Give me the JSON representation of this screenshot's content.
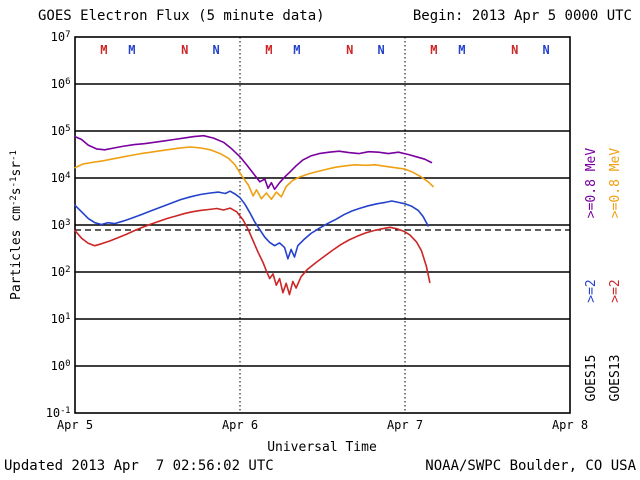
{
  "header": {
    "title": "GOES Electron Flux (5 minute data)",
    "begin": "Begin: 2013 Apr 5 0000 UTC"
  },
  "footer": {
    "updated": "Updated 2013 Apr  7 02:56:02 UTC",
    "credit": "NOAA/SWPC Boulder, CO USA"
  },
  "chart_data": {
    "type": "line",
    "title": "GOES Electron Flux (5 minute data)",
    "xlabel": "Universal Time",
    "ylabel_plain": "Particles cm-2s-1sr-1",
    "ylabel_parts": [
      {
        "text": "Particles cm"
      },
      {
        "text": "-2",
        "sup": true
      },
      {
        "text": "s"
      },
      {
        "text": "-1",
        "sup": true
      },
      {
        "text": "sr"
      },
      {
        "text": "-1",
        "sup": true
      }
    ],
    "x_start": "2013 Apr 5 0000 UTC",
    "x_end": "2013 Apr 8 0000 UTC",
    "xlim_days": [
      0,
      3
    ],
    "ylim_log10": [
      -1,
      7
    ],
    "grid": true,
    "y_base": "10",
    "y_tick_exponents": [
      "7",
      "6",
      "5",
      "4",
      "3",
      "2",
      "1",
      "0",
      "-1"
    ],
    "x_ticks": [
      {
        "day": 0,
        "label": "Apr 5"
      },
      {
        "day": 1,
        "label": "Apr 6"
      },
      {
        "day": 2,
        "label": "Apr 7"
      },
      {
        "day": 3,
        "label": "Apr 8"
      }
    ],
    "threshold_log10": 3,
    "day_gridlines": [
      1,
      2
    ],
    "colors": {
      "purple": "#7A00A0",
      "orange": "#EFA012",
      "blue": "#2442CC",
      "red": "#CC2626",
      "axis": "#000000"
    },
    "markers": [
      {
        "d": 0.175,
        "letter": "M",
        "color_key": "red"
      },
      {
        "d": 0.345,
        "letter": "M",
        "color_key": "blue"
      },
      {
        "d": 0.665,
        "letter": "N",
        "color_key": "red"
      },
      {
        "d": 0.855,
        "letter": "N",
        "color_key": "blue"
      },
      {
        "d": 1.175,
        "letter": "M",
        "color_key": "red"
      },
      {
        "d": 1.345,
        "letter": "M",
        "color_key": "blue"
      },
      {
        "d": 1.665,
        "letter": "N",
        "color_key": "red"
      },
      {
        "d": 1.855,
        "letter": "N",
        "color_key": "blue"
      },
      {
        "d": 2.175,
        "letter": "M",
        "color_key": "red"
      },
      {
        "d": 2.345,
        "letter": "M",
        "color_key": "blue"
      },
      {
        "d": 2.665,
        "letter": "N",
        "color_key": "red"
      },
      {
        "d": 2.855,
        "letter": "N",
        "color_key": "blue"
      }
    ],
    "legend": {
      "columns": [
        {
          "satellite": "GOES15",
          "labels": [
            {
              "text": ">=0.8 MeV",
              "color_key": "purple"
            },
            {
              "text": ">=2",
              "color_key": "blue"
            }
          ]
        },
        {
          "satellite": "GOES13",
          "labels": [
            {
              "text": ">=0.8 MeV",
              "color_key": "orange"
            },
            {
              "text": ">=2",
              "color_key": "red"
            }
          ]
        }
      ]
    },
    "series": [
      {
        "name": "GOES15 >=0.8 MeV",
        "key": "goes15-ge0p8mev",
        "color_key": "purple",
        "points": [
          [
            0,
            4.88
          ],
          [
            0.04,
            4.82
          ],
          [
            0.08,
            4.7
          ],
          [
            0.13,
            4.62
          ],
          [
            0.18,
            4.6
          ],
          [
            0.24,
            4.64
          ],
          [
            0.3,
            4.68
          ],
          [
            0.36,
            4.71
          ],
          [
            0.42,
            4.73
          ],
          [
            0.48,
            4.76
          ],
          [
            0.54,
            4.79
          ],
          [
            0.6,
            4.82
          ],
          [
            0.66,
            4.85
          ],
          [
            0.72,
            4.88
          ],
          [
            0.78,
            4.9
          ],
          [
            0.84,
            4.85
          ],
          [
            0.9,
            4.76
          ],
          [
            0.95,
            4.62
          ],
          [
            1,
            4.45
          ],
          [
            1.04,
            4.28
          ],
          [
            1.08,
            4.1
          ],
          [
            1.12,
            3.92
          ],
          [
            1.15,
            3.98
          ],
          [
            1.17,
            3.78
          ],
          [
            1.19,
            3.9
          ],
          [
            1.21,
            3.76
          ],
          [
            1.24,
            3.9
          ],
          [
            1.27,
            4.02
          ],
          [
            1.3,
            4.12
          ],
          [
            1.34,
            4.26
          ],
          [
            1.38,
            4.38
          ],
          [
            1.43,
            4.47
          ],
          [
            1.48,
            4.52
          ],
          [
            1.54,
            4.55
          ],
          [
            1.6,
            4.57
          ],
          [
            1.66,
            4.54
          ],
          [
            1.72,
            4.52
          ],
          [
            1.78,
            4.56
          ],
          [
            1.84,
            4.55
          ],
          [
            1.9,
            4.52
          ],
          [
            1.96,
            4.55
          ],
          [
            2.02,
            4.5
          ],
          [
            2.07,
            4.45
          ],
          [
            2.12,
            4.4
          ],
          [
            2.16,
            4.33
          ]
        ]
      },
      {
        "name": "GOES13 >=0.8 MeV",
        "key": "goes13-ge0p8mev",
        "color_key": "orange",
        "points": [
          [
            0,
            4.22
          ],
          [
            0.05,
            4.3
          ],
          [
            0.1,
            4.33
          ],
          [
            0.16,
            4.36
          ],
          [
            0.22,
            4.4
          ],
          [
            0.28,
            4.44
          ],
          [
            0.34,
            4.48
          ],
          [
            0.4,
            4.52
          ],
          [
            0.46,
            4.55
          ],
          [
            0.52,
            4.58
          ],
          [
            0.58,
            4.61
          ],
          [
            0.64,
            4.64
          ],
          [
            0.7,
            4.66
          ],
          [
            0.76,
            4.64
          ],
          [
            0.82,
            4.6
          ],
          [
            0.88,
            4.52
          ],
          [
            0.93,
            4.42
          ],
          [
            0.97,
            4.28
          ],
          [
            1.01,
            4.05
          ],
          [
            1.05,
            3.85
          ],
          [
            1.08,
            3.62
          ],
          [
            1.1,
            3.75
          ],
          [
            1.13,
            3.56
          ],
          [
            1.16,
            3.68
          ],
          [
            1.19,
            3.55
          ],
          [
            1.22,
            3.7
          ],
          [
            1.25,
            3.6
          ],
          [
            1.28,
            3.82
          ],
          [
            1.32,
            3.95
          ],
          [
            1.36,
            4.02
          ],
          [
            1.41,
            4.08
          ],
          [
            1.46,
            4.13
          ],
          [
            1.52,
            4.18
          ],
          [
            1.58,
            4.23
          ],
          [
            1.64,
            4.26
          ],
          [
            1.7,
            4.28
          ],
          [
            1.76,
            4.27
          ],
          [
            1.82,
            4.28
          ],
          [
            1.88,
            4.25
          ],
          [
            1.94,
            4.22
          ],
          [
            2,
            4.19
          ],
          [
            2.05,
            4.12
          ],
          [
            2.1,
            4.02
          ],
          [
            2.14,
            3.92
          ],
          [
            2.17,
            3.82
          ]
        ]
      },
      {
        "name": "GOES15 >=2 MeV",
        "key": "goes15-ge2mev",
        "color_key": "blue",
        "points": [
          [
            0,
            3.42
          ],
          [
            0.04,
            3.28
          ],
          [
            0.08,
            3.14
          ],
          [
            0.12,
            3.05
          ],
          [
            0.16,
            3.01
          ],
          [
            0.2,
            3.05
          ],
          [
            0.24,
            3.03
          ],
          [
            0.29,
            3.08
          ],
          [
            0.34,
            3.14
          ],
          [
            0.4,
            3.22
          ],
          [
            0.46,
            3.3
          ],
          [
            0.52,
            3.38
          ],
          [
            0.58,
            3.46
          ],
          [
            0.64,
            3.54
          ],
          [
            0.7,
            3.6
          ],
          [
            0.76,
            3.65
          ],
          [
            0.82,
            3.68
          ],
          [
            0.87,
            3.7
          ],
          [
            0.91,
            3.67
          ],
          [
            0.94,
            3.72
          ],
          [
            0.97,
            3.66
          ],
          [
            1,
            3.58
          ],
          [
            1.03,
            3.44
          ],
          [
            1.06,
            3.26
          ],
          [
            1.09,
            3.06
          ],
          [
            1.12,
            2.9
          ],
          [
            1.15,
            2.74
          ],
          [
            1.18,
            2.63
          ],
          [
            1.21,
            2.56
          ],
          [
            1.24,
            2.62
          ],
          [
            1.27,
            2.52
          ],
          [
            1.29,
            2.28
          ],
          [
            1.31,
            2.48
          ],
          [
            1.33,
            2.32
          ],
          [
            1.35,
            2.56
          ],
          [
            1.39,
            2.7
          ],
          [
            1.43,
            2.82
          ],
          [
            1.48,
            2.93
          ],
          [
            1.53,
            3.03
          ],
          [
            1.58,
            3.12
          ],
          [
            1.63,
            3.22
          ],
          [
            1.68,
            3.3
          ],
          [
            1.73,
            3.36
          ],
          [
            1.78,
            3.41
          ],
          [
            1.83,
            3.45
          ],
          [
            1.88,
            3.48
          ],
          [
            1.92,
            3.51
          ],
          [
            1.96,
            3.48
          ],
          [
            2,
            3.45
          ],
          [
            2.04,
            3.4
          ],
          [
            2.08,
            3.31
          ],
          [
            2.11,
            3.18
          ],
          [
            2.14,
            2.98
          ]
        ]
      },
      {
        "name": "GOES13 >=2 MeV",
        "key": "goes13-ge2mev",
        "color_key": "red",
        "points": [
          [
            0,
            2.88
          ],
          [
            0.04,
            2.72
          ],
          [
            0.08,
            2.61
          ],
          [
            0.12,
            2.56
          ],
          [
            0.16,
            2.6
          ],
          [
            0.21,
            2.66
          ],
          [
            0.26,
            2.73
          ],
          [
            0.31,
            2.8
          ],
          [
            0.36,
            2.88
          ],
          [
            0.41,
            2.95
          ],
          [
            0.46,
            3.02
          ],
          [
            0.51,
            3.08
          ],
          [
            0.56,
            3.14
          ],
          [
            0.61,
            3.19
          ],
          [
            0.66,
            3.24
          ],
          [
            0.71,
            3.28
          ],
          [
            0.76,
            3.31
          ],
          [
            0.81,
            3.33
          ],
          [
            0.86,
            3.35
          ],
          [
            0.9,
            3.32
          ],
          [
            0.94,
            3.36
          ],
          [
            0.98,
            3.28
          ],
          [
            1.02,
            3.1
          ],
          [
            1.05,
            2.9
          ],
          [
            1.08,
            2.66
          ],
          [
            1.11,
            2.42
          ],
          [
            1.14,
            2.2
          ],
          [
            1.16,
            2.02
          ],
          [
            1.18,
            1.86
          ],
          [
            1.2,
            1.96
          ],
          [
            1.22,
            1.72
          ],
          [
            1.24,
            1.86
          ],
          [
            1.26,
            1.56
          ],
          [
            1.28,
            1.76
          ],
          [
            1.3,
            1.52
          ],
          [
            1.32,
            1.8
          ],
          [
            1.34,
            1.66
          ],
          [
            1.37,
            1.9
          ],
          [
            1.41,
            2.06
          ],
          [
            1.46,
            2.2
          ],
          [
            1.51,
            2.33
          ],
          [
            1.56,
            2.46
          ],
          [
            1.61,
            2.58
          ],
          [
            1.66,
            2.68
          ],
          [
            1.71,
            2.76
          ],
          [
            1.76,
            2.83
          ],
          [
            1.81,
            2.88
          ],
          [
            1.86,
            2.92
          ],
          [
            1.91,
            2.95
          ],
          [
            1.95,
            2.92
          ],
          [
            1.99,
            2.87
          ],
          [
            2.03,
            2.79
          ],
          [
            2.07,
            2.64
          ],
          [
            2.1,
            2.45
          ],
          [
            2.13,
            2.12
          ],
          [
            2.15,
            1.78
          ]
        ]
      }
    ]
  }
}
